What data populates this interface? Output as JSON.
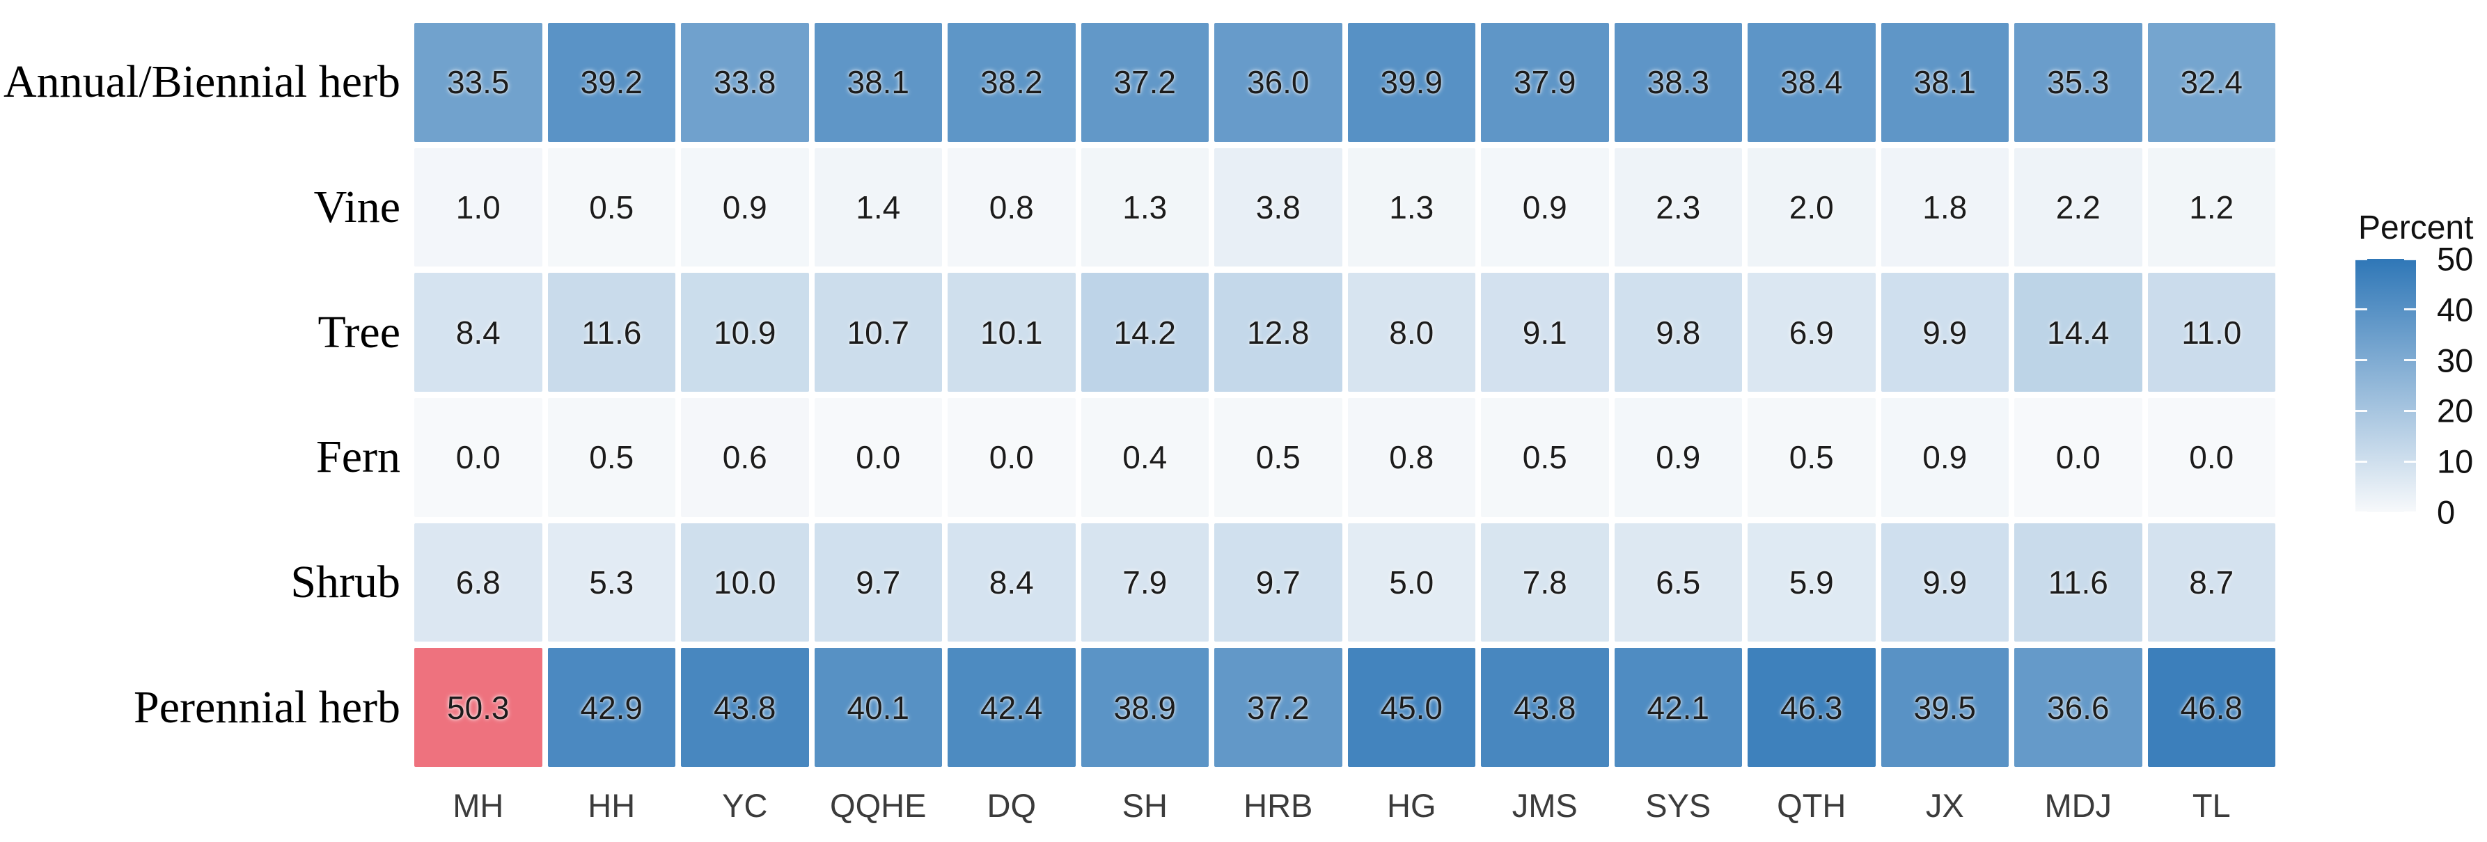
{
  "figure": {
    "background": "#ffffff"
  },
  "chart_data": {
    "type": "heatmap",
    "title": "",
    "x_categories": [
      "MH",
      "HH",
      "YC",
      "QQHE",
      "DQ",
      "SH",
      "HRB",
      "HG",
      "JMS",
      "SYS",
      "QTH",
      "JX",
      "MDJ",
      "TL"
    ],
    "y_categories": [
      "Annual/Biennial herb",
      "Vine",
      "Tree",
      "Fern",
      "Shrub",
      "Perennial herb"
    ],
    "series": [
      {
        "name": "Annual/Biennial herb",
        "values": [
          33.5,
          39.2,
          33.8,
          38.1,
          38.2,
          37.2,
          36.0,
          39.9,
          37.9,
          38.3,
          38.4,
          38.1,
          35.3,
          32.4
        ]
      },
      {
        "name": "Vine",
        "values": [
          1.0,
          0.5,
          0.9,
          1.4,
          0.8,
          1.3,
          3.8,
          1.3,
          0.9,
          2.3,
          2.0,
          1.8,
          2.2,
          1.2
        ]
      },
      {
        "name": "Tree",
        "values": [
          8.4,
          11.6,
          10.9,
          10.7,
          10.1,
          14.2,
          12.8,
          8.0,
          9.1,
          9.8,
          6.9,
          9.9,
          14.4,
          11.0
        ]
      },
      {
        "name": "Fern",
        "values": [
          0.0,
          0.5,
          0.6,
          0.0,
          0.0,
          0.4,
          0.5,
          0.8,
          0.5,
          0.9,
          0.5,
          0.9,
          0.0,
          0.0
        ]
      },
      {
        "name": "Shrub",
        "values": [
          6.8,
          5.3,
          10.0,
          9.7,
          8.4,
          7.9,
          9.7,
          5.0,
          7.8,
          6.5,
          5.9,
          9.9,
          11.6,
          8.7
        ]
      },
      {
        "name": "Perennial herb",
        "values": [
          50.3,
          42.9,
          43.8,
          40.1,
          42.4,
          38.9,
          37.2,
          45.0,
          43.8,
          42.1,
          46.3,
          39.5,
          36.6,
          46.8
        ]
      }
    ],
    "value_format": "one-decimal",
    "value_unit": "percent",
    "legend": {
      "title": "Percent",
      "min": 0,
      "max": 50,
      "ticks": [
        50,
        40,
        30,
        20,
        10,
        0
      ],
      "position": "right"
    },
    "colors": {
      "gradient_low": "#f7f9fb",
      "gradient_high": "#2f77b7",
      "over_scale": "#ee727e",
      "cell_text": "#1c1c1c",
      "x_axis_text": "#3b3b3b",
      "y_axis_text": "#000000",
      "legend_text": "#111111"
    },
    "grid_on": false
  }
}
